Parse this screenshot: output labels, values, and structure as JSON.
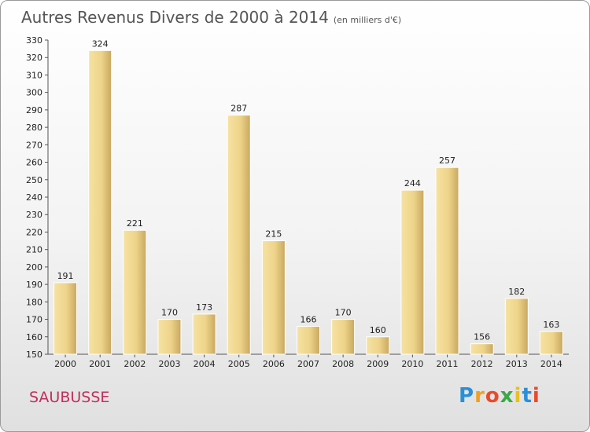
{
  "chart_data": {
    "type": "bar",
    "title": "Autres Revenus Divers de 2000 à 2014",
    "unit": "(en milliers d'€)",
    "categories": [
      "2000",
      "2001",
      "2002",
      "2003",
      "2004",
      "2005",
      "2006",
      "2007",
      "2008",
      "2009",
      "2010",
      "2011",
      "2012",
      "2013",
      "2014"
    ],
    "values": [
      191,
      324,
      221,
      170,
      173,
      287,
      215,
      166,
      170,
      160,
      244,
      257,
      156,
      182,
      163
    ],
    "ylim": [
      150,
      330
    ],
    "yticks": [
      150,
      160,
      170,
      180,
      190,
      200,
      210,
      220,
      230,
      240,
      250,
      260,
      270,
      280,
      290,
      300,
      310,
      320,
      330
    ],
    "grid": false,
    "bar_color": "#e9cf83"
  },
  "commune": "SAUBUSSE",
  "logo": {
    "letters": [
      "P",
      "r",
      "o",
      "x",
      "i",
      "t",
      "i"
    ],
    "colors": [
      "#2b8fd6",
      "#f0a020",
      "#e84b2a",
      "#3aa845",
      "#e8c020",
      "#2b8fd6",
      "#e84b2a"
    ]
  }
}
